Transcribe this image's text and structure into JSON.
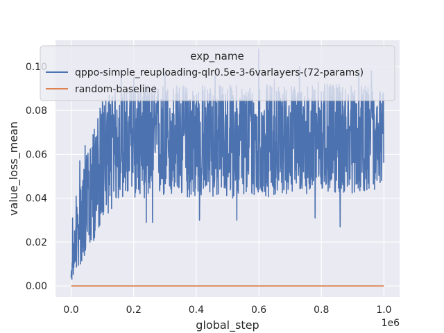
{
  "chart_data": {
    "type": "line",
    "title": "",
    "xlabel": "global_step",
    "ylabel": "value_loss_mean",
    "x_scale_label": "1e6",
    "xlim": [
      -0.05,
      1.05
    ],
    "ylim": [
      -0.005,
      0.112
    ],
    "x_ticks": [
      0.0,
      0.2,
      0.4,
      0.6,
      0.8,
      1.0
    ],
    "x_tick_labels": [
      "0.0",
      "0.2",
      "0.4",
      "0.6",
      "0.8",
      "1.0"
    ],
    "y_ticks": [
      0.0,
      0.02,
      0.04,
      0.06,
      0.08,
      0.1
    ],
    "y_tick_labels": [
      "0.00",
      "0.02",
      "0.04",
      "0.06",
      "0.08",
      "0.10"
    ],
    "grid": true,
    "background": "#eaeaf2",
    "legend": {
      "title": "exp_name",
      "placement": "upper-center"
    },
    "series": [
      {
        "name": "qppo-simple_reuploading-qlr0.5e-3-6varlayers-(72-params)",
        "color": "#4c72b0",
        "noisy": true,
        "x_range": [
          0.0,
          1.0
        ],
        "envelope_x": [
          0.0,
          0.01,
          0.02,
          0.04,
          0.06,
          0.08,
          0.1,
          0.13,
          0.16,
          0.2,
          0.3,
          0.4,
          0.5,
          0.6,
          0.7,
          0.8,
          0.9,
          1.0
        ],
        "envelope_low": [
          0.002,
          0.005,
          0.008,
          0.012,
          0.018,
          0.022,
          0.03,
          0.035,
          0.04,
          0.04,
          0.04,
          0.04,
          0.04,
          0.04,
          0.042,
          0.042,
          0.042,
          0.045
        ],
        "envelope_high": [
          0.005,
          0.025,
          0.04,
          0.055,
          0.065,
          0.075,
          0.085,
          0.09,
          0.09,
          0.092,
          0.092,
          0.092,
          0.092,
          0.092,
          0.092,
          0.092,
          0.092,
          0.09
        ],
        "envelope_center": [
          0.003,
          0.015,
          0.025,
          0.035,
          0.042,
          0.05,
          0.058,
          0.062,
          0.064,
          0.066,
          0.066,
          0.066,
          0.067,
          0.066,
          0.066,
          0.066,
          0.067,
          0.066
        ],
        "spikes": [
          {
            "x": 0.005,
            "y": 0.031
          },
          {
            "x": 0.016,
            "y": 0.041
          },
          {
            "x": 0.028,
            "y": 0.057
          },
          {
            "x": 0.045,
            "y": 0.064
          },
          {
            "x": 0.07,
            "y": 0.069
          },
          {
            "x": 0.12,
            "y": 0.077
          },
          {
            "x": 0.16,
            "y": 0.098
          },
          {
            "x": 0.2,
            "y": 0.095
          },
          {
            "x": 0.24,
            "y": 0.1
          },
          {
            "x": 0.3,
            "y": 0.097
          },
          {
            "x": 0.37,
            "y": 0.09
          },
          {
            "x": 0.46,
            "y": 0.096
          },
          {
            "x": 0.53,
            "y": 0.103
          },
          {
            "x": 0.6,
            "y": 0.108
          },
          {
            "x": 0.65,
            "y": 0.094
          },
          {
            "x": 0.73,
            "y": 0.1
          },
          {
            "x": 0.79,
            "y": 0.093
          },
          {
            "x": 0.86,
            "y": 0.097
          },
          {
            "x": 0.92,
            "y": 0.097
          },
          {
            "x": 0.96,
            "y": 0.098
          },
          {
            "x": 0.03,
            "y": 0.01
          },
          {
            "x": 0.06,
            "y": 0.02
          },
          {
            "x": 0.075,
            "y": 0.022
          },
          {
            "x": 0.095,
            "y": 0.035
          },
          {
            "x": 0.24,
            "y": 0.029
          },
          {
            "x": 0.26,
            "y": 0.029
          },
          {
            "x": 0.41,
            "y": 0.03
          },
          {
            "x": 0.53,
            "y": 0.03
          },
          {
            "x": 0.78,
            "y": 0.031
          },
          {
            "x": 0.86,
            "y": 0.027
          },
          {
            "x": 0.97,
            "y": 0.044
          }
        ]
      },
      {
        "name": "random-baseline",
        "color": "#dd8452",
        "x": [
          0.0,
          1.0
        ],
        "y": [
          0.0,
          0.0
        ]
      }
    ]
  }
}
